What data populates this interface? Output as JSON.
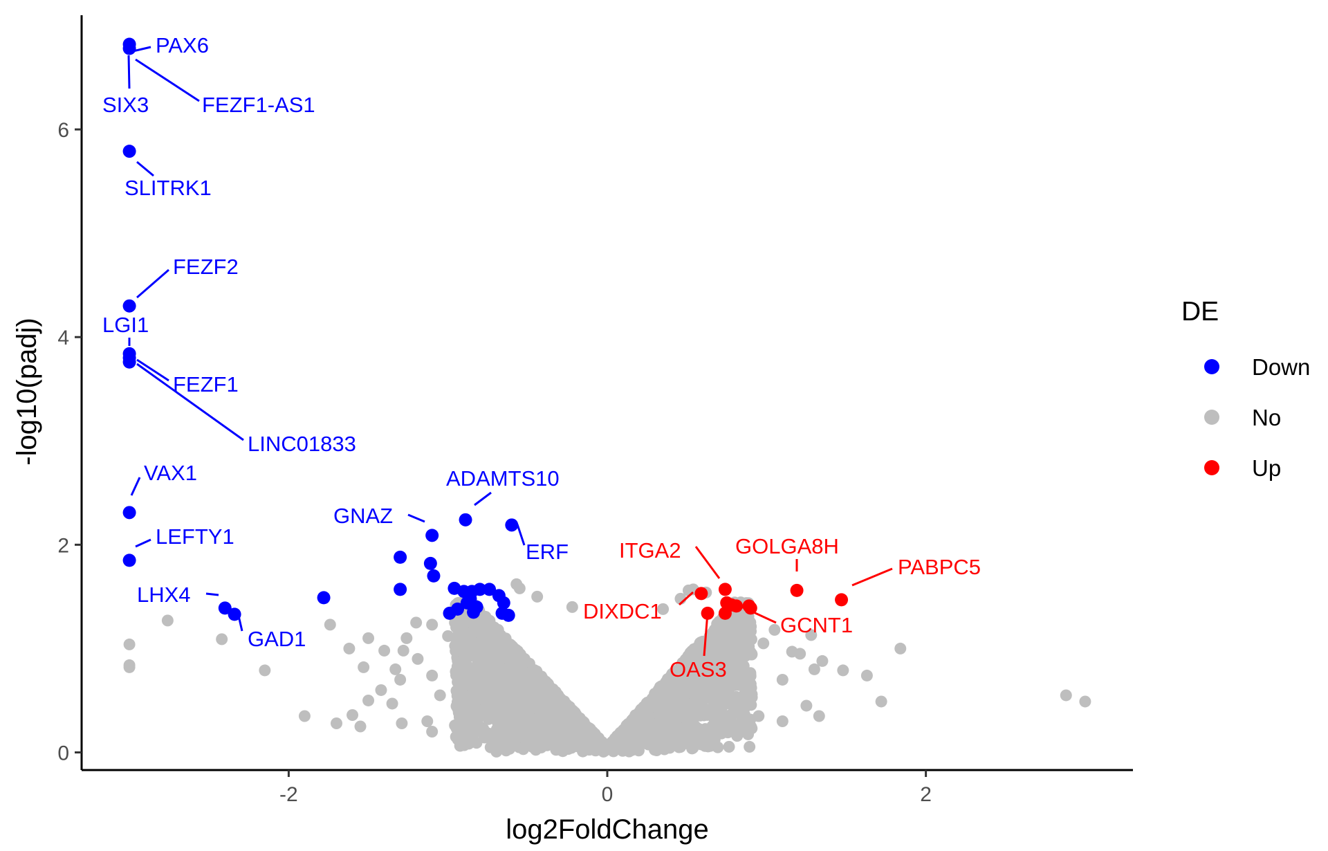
{
  "chart_data": {
    "type": "scatter",
    "title": "",
    "xlabel": "log2FoldChange",
    "ylabel": "-log10(padj)",
    "xlim": [
      -3.3,
      3.3
    ],
    "ylim": [
      -0.17,
      7.1
    ],
    "x_ticks": [
      -2,
      0,
      2
    ],
    "x_tick_labels": [
      "-2",
      "0",
      "2"
    ],
    "y_ticks": [
      0,
      2,
      4,
      6
    ],
    "y_tick_labels": [
      "0",
      "2",
      "4",
      "6"
    ],
    "grid": false,
    "legend": {
      "title": "DE",
      "position": "right",
      "entries": [
        {
          "label": "Down",
          "color": "#0000ff"
        },
        {
          "label": "No",
          "color": "#bebebe"
        },
        {
          "label": "Up",
          "color": "#ff0000"
        }
      ]
    },
    "colors": {
      "Down": "#0000ff",
      "No": "#bebebe",
      "Up": "#ff0000"
    },
    "series": [
      {
        "name": "Down",
        "points": [
          [
            -3.0,
            6.82
          ],
          [
            -3.0,
            6.78
          ],
          [
            -3.0,
            5.79
          ],
          [
            -3.0,
            4.3
          ],
          [
            -3.0,
            3.84
          ],
          [
            -3.0,
            3.8
          ],
          [
            -3.0,
            3.76
          ],
          [
            -3.0,
            2.31
          ],
          [
            -3.0,
            1.85
          ],
          [
            -2.4,
            1.39
          ],
          [
            -2.34,
            1.33
          ],
          [
            -1.78,
            1.49
          ],
          [
            -1.3,
            1.88
          ],
          [
            -1.3,
            1.57
          ],
          [
            -1.1,
            2.09
          ],
          [
            -1.11,
            1.82
          ],
          [
            -1.09,
            1.7
          ],
          [
            -0.89,
            2.24
          ],
          [
            -0.6,
            2.19
          ],
          [
            -0.96,
            1.58
          ],
          [
            -0.9,
            1.55
          ],
          [
            -0.85,
            1.55
          ],
          [
            -0.8,
            1.57
          ],
          [
            -0.74,
            1.57
          ],
          [
            -0.68,
            1.51
          ],
          [
            -0.65,
            1.44
          ],
          [
            -0.99,
            1.34
          ],
          [
            -0.94,
            1.38
          ],
          [
            -0.88,
            1.44
          ],
          [
            -0.84,
            1.35
          ],
          [
            -0.66,
            1.34
          ],
          [
            -0.62,
            1.32
          ],
          [
            -0.86,
            1.48
          ],
          [
            -0.82,
            1.4
          ]
        ]
      },
      {
        "name": "Up",
        "points": [
          [
            0.59,
            1.53
          ],
          [
            0.74,
            1.57
          ],
          [
            0.75,
            1.44
          ],
          [
            0.78,
            1.42
          ],
          [
            0.81,
            1.41
          ],
          [
            0.89,
            1.41
          ],
          [
            0.9,
            1.39
          ],
          [
            0.74,
            1.34
          ],
          [
            0.63,
            1.34
          ],
          [
            1.19,
            1.56
          ],
          [
            1.47,
            1.47
          ]
        ]
      },
      {
        "name": "No",
        "points": [
          [
            -3.0,
            1.04
          ],
          [
            -3.0,
            0.84
          ],
          [
            -3.0,
            0.82
          ],
          [
            -2.76,
            1.27
          ],
          [
            -2.42,
            1.09
          ],
          [
            -2.15,
            0.79
          ],
          [
            -1.74,
            1.23
          ],
          [
            -1.5,
            1.1
          ],
          [
            -1.62,
            1.0
          ],
          [
            -1.53,
            0.82
          ],
          [
            -1.4,
            0.98
          ],
          [
            -1.5,
            0.5
          ],
          [
            -1.3,
            0.7
          ],
          [
            -1.2,
            1.25
          ],
          [
            -1.35,
            0.47
          ],
          [
            -1.1,
            1.23
          ],
          [
            -1.26,
            1.1
          ],
          [
            -1.42,
            0.6
          ],
          [
            -1.6,
            0.36
          ],
          [
            -1.7,
            0.28
          ],
          [
            -1.9,
            0.35
          ],
          [
            -1.55,
            0.25
          ],
          [
            -1.33,
            0.8
          ],
          [
            -1.19,
            0.9
          ],
          [
            -1.29,
            0.28
          ],
          [
            -1.13,
            0.3
          ],
          [
            -1.1,
            0.2
          ],
          [
            -1.05,
            0.55
          ],
          [
            -0.95,
            0.15
          ],
          [
            -0.86,
            0.3
          ],
          [
            -0.75,
            0.45
          ],
          [
            -0.7,
            0.1
          ],
          [
            -0.57,
            1.62
          ],
          [
            -0.55,
            1.58
          ],
          [
            -0.44,
            1.5
          ],
          [
            -0.22,
            1.4
          ],
          [
            -0.52,
            0.05
          ],
          [
            -0.43,
            0.08
          ],
          [
            -0.3,
            0.05
          ],
          [
            -1.28,
            0.98
          ],
          [
            -1.0,
            1.12
          ],
          [
            -1.1,
            0.74
          ],
          [
            0.35,
            1.38
          ],
          [
            0.51,
            1.56
          ],
          [
            0.54,
            1.57
          ],
          [
            0.46,
            1.48
          ],
          [
            0.62,
            1.54
          ],
          [
            0.98,
            1.05
          ],
          [
            1.05,
            1.18
          ],
          [
            1.16,
            0.97
          ],
          [
            1.21,
            0.95
          ],
          [
            1.28,
            1.13
          ],
          [
            1.35,
            0.88
          ],
          [
            1.48,
            0.79
          ],
          [
            1.63,
            0.74
          ],
          [
            1.72,
            0.49
          ],
          [
            1.84,
            1.0
          ],
          [
            1.1,
            0.3
          ],
          [
            1.25,
            0.45
          ],
          [
            1.33,
            0.35
          ],
          [
            0.95,
            0.35
          ],
          [
            1.1,
            0.7
          ],
          [
            0.8,
            0.4
          ],
          [
            0.7,
            0.25
          ],
          [
            0.55,
            0.15
          ],
          [
            0.45,
            0.05
          ],
          [
            0.31,
            0.02
          ],
          [
            2.88,
            0.55
          ],
          [
            3.0,
            0.49
          ],
          [
            1.3,
            0.8
          ],
          [
            0.88,
            0.6
          ],
          [
            0.9,
            0.25
          ]
        ]
      }
    ],
    "annotations": [
      {
        "text": "PAX6",
        "x": -3.0,
        "y": 6.8,
        "color": "#0000ff"
      },
      {
        "text": "SIX3",
        "x": -3.0,
        "y": 6.8,
        "color": "#0000ff"
      },
      {
        "text": "FEZF1-AS1",
        "x": -3.0,
        "y": 6.8,
        "color": "#0000ff"
      },
      {
        "text": "SLITRK1",
        "x": -3.0,
        "y": 5.79,
        "color": "#0000ff"
      },
      {
        "text": "FEZF2",
        "x": -3.0,
        "y": 4.3,
        "color": "#0000ff"
      },
      {
        "text": "LGI1",
        "x": -3.0,
        "y": 3.84,
        "color": "#0000ff"
      },
      {
        "text": "FEZF1",
        "x": -3.0,
        "y": 3.8,
        "color": "#0000ff"
      },
      {
        "text": "LINC01833",
        "x": -3.0,
        "y": 3.76,
        "color": "#0000ff"
      },
      {
        "text": "VAX1",
        "x": -3.0,
        "y": 2.31,
        "color": "#0000ff"
      },
      {
        "text": "LEFTY1",
        "x": -3.0,
        "y": 1.85,
        "color": "#0000ff"
      },
      {
        "text": "LHX4",
        "x": -2.4,
        "y": 1.39,
        "color": "#0000ff"
      },
      {
        "text": "GAD1",
        "x": -2.34,
        "y": 1.33,
        "color": "#0000ff"
      },
      {
        "text": "GNAZ",
        "x": -1.1,
        "y": 2.09,
        "color": "#0000ff"
      },
      {
        "text": "ADAMTS10",
        "x": -0.89,
        "y": 2.24,
        "color": "#0000ff"
      },
      {
        "text": "ERF",
        "x": -0.6,
        "y": 2.19,
        "color": "#0000ff"
      },
      {
        "text": "ITGA2",
        "x": 0.74,
        "y": 1.57,
        "color": "#ff0000"
      },
      {
        "text": "GOLGA8H",
        "x": 1.19,
        "y": 1.56,
        "color": "#ff0000"
      },
      {
        "text": "PABPC5",
        "x": 1.47,
        "y": 1.47,
        "color": "#ff0000"
      },
      {
        "text": "DIXDC1",
        "x": 0.59,
        "y": 1.53,
        "color": "#ff0000"
      },
      {
        "text": "GCNT1",
        "x": 0.78,
        "y": 1.42,
        "color": "#ff0000"
      },
      {
        "text": "OAS3",
        "x": 0.63,
        "y": 1.34,
        "color": "#ff0000"
      }
    ]
  }
}
